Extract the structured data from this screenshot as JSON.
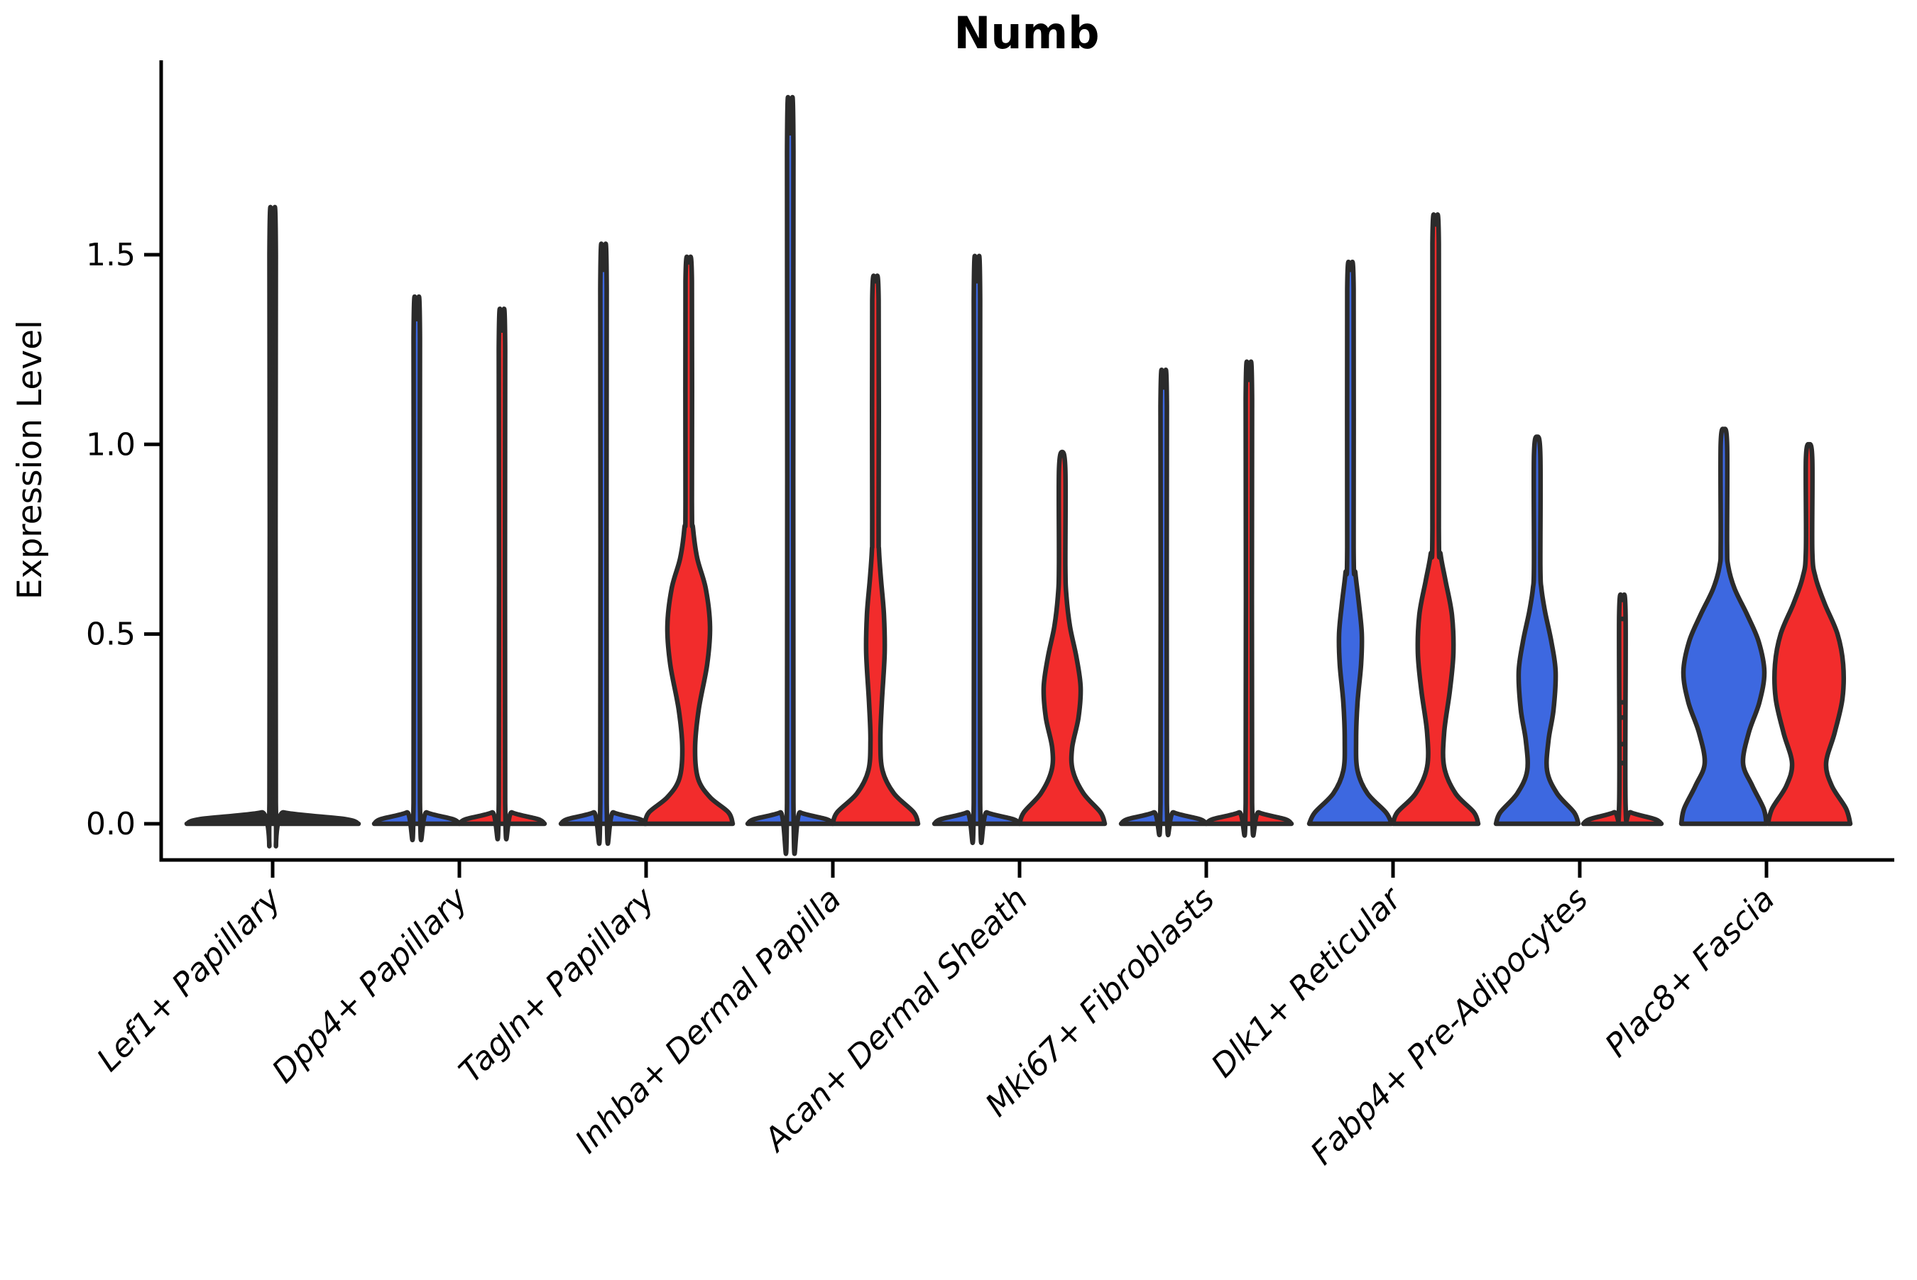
{
  "chart_data": {
    "type": "violin",
    "title": "Numb",
    "ylabel": "Expression Level",
    "xlabel": "",
    "ylim": [
      -0.09,
      2.02
    ],
    "grid": false,
    "legend": "none",
    "yticks": {
      "values": [
        0.0,
        0.5,
        1.0,
        1.5
      ],
      "labels": [
        "0.0",
        "0.5",
        "1.0",
        "1.5"
      ]
    },
    "categories": [
      "Lef1+ Papillary",
      "Dpp4+ Papillary",
      "Tagln+ Papillary",
      "Inhba+ Dermal Papilla",
      "Acan+ Dermal Sheath",
      "Mki67+ Fibroblasts",
      "Dlk1+ Reticular",
      "Fabp4+ Pre-Adipocytes",
      "Plac8+ Fascia"
    ],
    "colors": {
      "split_a": "#3d68e0",
      "split_b": "#f22c2c",
      "outline": "#2b2b2b",
      "axis": "#000000"
    },
    "description": "Split violin plot of Numb expression per fibroblast cluster; most mass at 0 with thin density spikes to the listed maxima; blue = first split level (left violin), red = second split level (right violin).",
    "groups": [
      {
        "category": "Lef1+ Papillary",
        "violins": [
          {
            "side": "center",
            "color": "dark",
            "max": 1.55,
            "median": 0.0,
            "profile": [
              [
                0,
                121
              ],
              [
                0.012,
                103
              ],
              [
                0.03,
                16
              ],
              [
                0.055,
                4.5
              ],
              [
                1.5,
                4.5
              ],
              [
                1.55,
                0
              ]
            ],
            "dots": []
          }
        ]
      },
      {
        "category": "Dpp4+ Papillary",
        "violins": [
          {
            "side": "left",
            "color": "blue",
            "max": 1.33,
            "median": 0.0,
            "profile": [
              [
                0,
                60
              ],
              [
                0.012,
                51
              ],
              [
                0.03,
                14
              ],
              [
                0.055,
                4.5
              ],
              [
                1.28,
                4.5
              ],
              [
                1.33,
                0
              ]
            ],
            "dots": []
          },
          {
            "side": "right",
            "color": "red",
            "max": 1.3,
            "median": 0.0,
            "profile": [
              [
                0,
                60
              ],
              [
                0.012,
                51
              ],
              [
                0.03,
                14
              ],
              [
                0.055,
                4.5
              ],
              [
                1.25,
                4.5
              ],
              [
                1.3,
                0
              ]
            ],
            "dots": []
          }
        ]
      },
      {
        "category": "Tagln+ Papillary",
        "violins": [
          {
            "side": "left",
            "color": "blue",
            "max": 1.46,
            "median": 0.0,
            "profile": [
              [
                0,
                60
              ],
              [
                0.012,
                51
              ],
              [
                0.03,
                14
              ],
              [
                0.055,
                4.5
              ],
              [
                1.41,
                4.5
              ],
              [
                1.46,
                0
              ]
            ],
            "dots": []
          },
          {
            "side": "right",
            "color": "red",
            "max": 1.48,
            "median": 0.0,
            "profile": [
              [
                0,
                62
              ],
              [
                0.03,
                56
              ],
              [
                0.07,
                30
              ],
              [
                0.12,
                13
              ],
              [
                0.2,
                9
              ],
              [
                0.3,
                14
              ],
              [
                0.42,
                26
              ],
              [
                0.52,
                30
              ],
              [
                0.62,
                24
              ],
              [
                0.7,
                12
              ],
              [
                0.78,
                6
              ],
              [
                0.85,
                4.5
              ],
              [
                1.43,
                4.5
              ],
              [
                1.48,
                0
              ]
            ],
            "dots": []
          }
        ]
      },
      {
        "category": "Inhba+ Dermal Papilla",
        "violins": [
          {
            "side": "left",
            "color": "blue",
            "max": 1.82,
            "median": 0.0,
            "profile": [
              [
                0,
                60
              ],
              [
                0.012,
                51
              ],
              [
                0.03,
                14
              ],
              [
                0.055,
                4.5
              ],
              [
                1.77,
                4.5
              ],
              [
                1.82,
                0
              ]
            ],
            "dots": []
          },
          {
            "side": "right",
            "color": "red",
            "max": 1.43,
            "median": 0.0,
            "profile": [
              [
                0,
                60
              ],
              [
                0.03,
                54
              ],
              [
                0.08,
                26
              ],
              [
                0.14,
                10
              ],
              [
                0.22,
                7
              ],
              [
                0.32,
                9
              ],
              [
                0.45,
                13
              ],
              [
                0.55,
                12
              ],
              [
                0.64,
                8
              ],
              [
                0.72,
                5
              ],
              [
                0.8,
                4.5
              ],
              [
                1.38,
                4.5
              ],
              [
                1.43,
                0
              ]
            ],
            "dots": []
          }
        ]
      },
      {
        "category": "Acan+ Dermal Sheath",
        "violins": [
          {
            "side": "left",
            "color": "blue",
            "max": 1.43,
            "median": 0.0,
            "profile": [
              [
                0,
                60
              ],
              [
                0.012,
                51
              ],
              [
                0.03,
                14
              ],
              [
                0.055,
                4.5
              ],
              [
                1.38,
                4.5
              ],
              [
                1.43,
                0
              ]
            ],
            "dots": []
          },
          {
            "side": "right",
            "color": "red",
            "max": 0.98,
            "median": 0.0,
            "profile": [
              [
                0,
                60
              ],
              [
                0.03,
                54
              ],
              [
                0.08,
                30
              ],
              [
                0.14,
                15
              ],
              [
                0.2,
                14
              ],
              [
                0.28,
                23
              ],
              [
                0.36,
                26
              ],
              [
                0.44,
                20
              ],
              [
                0.52,
                11
              ],
              [
                0.6,
                6
              ],
              [
                0.68,
                4.5
              ],
              [
                0.93,
                4.5
              ],
              [
                0.98,
                0
              ]
            ],
            "dots": []
          }
        ]
      },
      {
        "category": "Mki67+ Fibroblasts",
        "violins": [
          {
            "side": "left",
            "color": "blue",
            "max": 1.15,
            "median": 0.0,
            "profile": [
              [
                0,
                60
              ],
              [
                0.012,
                51
              ],
              [
                0.03,
                14
              ],
              [
                0.055,
                4.5
              ],
              [
                1.1,
                4.5
              ],
              [
                1.15,
                0
              ]
            ],
            "dots": []
          },
          {
            "side": "right",
            "color": "red",
            "max": 1.17,
            "median": 0.0,
            "profile": [
              [
                0,
                60
              ],
              [
                0.012,
                51
              ],
              [
                0.03,
                14
              ],
              [
                0.055,
                4.5
              ],
              [
                1.12,
                4.5
              ],
              [
                1.17,
                0
              ]
            ],
            "dots": []
          }
        ]
      },
      {
        "category": "Dlk1+ Reticular",
        "violins": [
          {
            "side": "left",
            "color": "blue",
            "max": 1.46,
            "median": 0.0,
            "profile": [
              [
                0,
                58
              ],
              [
                0.03,
                50
              ],
              [
                0.08,
                24
              ],
              [
                0.14,
                10
              ],
              [
                0.22,
                8
              ],
              [
                0.32,
                10
              ],
              [
                0.42,
                15
              ],
              [
                0.5,
                16
              ],
              [
                0.58,
                12
              ],
              [
                0.66,
                7
              ],
              [
                0.73,
                4.5
              ],
              [
                1.41,
                4.5
              ],
              [
                1.46,
                0
              ]
            ],
            "dots": []
          },
          {
            "side": "right",
            "color": "red",
            "max": 1.58,
            "median": 0.0,
            "profile": [
              [
                0,
                60
              ],
              [
                0.03,
                54
              ],
              [
                0.08,
                28
              ],
              [
                0.15,
                12
              ],
              [
                0.24,
                12
              ],
              [
                0.35,
                20
              ],
              [
                0.45,
                25
              ],
              [
                0.55,
                23
              ],
              [
                0.64,
                14
              ],
              [
                0.71,
                7
              ],
              [
                0.78,
                4.5
              ],
              [
                1.53,
                4.5
              ],
              [
                1.58,
                0
              ]
            ],
            "dots": []
          }
        ]
      },
      {
        "category": "Fabp4+ Pre-Adipocytes",
        "violins": [
          {
            "side": "left",
            "color": "blue",
            "max": 1.02,
            "median": 0.0,
            "profile": [
              [
                0,
                58
              ],
              [
                0.03,
                52
              ],
              [
                0.08,
                28
              ],
              [
                0.14,
                14
              ],
              [
                0.22,
                16
              ],
              [
                0.3,
                23
              ],
              [
                0.4,
                26
              ],
              [
                0.48,
                20
              ],
              [
                0.56,
                11
              ],
              [
                0.62,
                6
              ],
              [
                0.68,
                4.5
              ],
              [
                0.97,
                4.5
              ],
              [
                1.02,
                0
              ]
            ],
            "dots": []
          },
          {
            "side": "right",
            "color": "red",
            "max": 0.59,
            "median": 0.0,
            "profile": [
              [
                0,
                55
              ],
              [
                0.012,
                46
              ],
              [
                0.03,
                12
              ],
              [
                0.05,
                4.5
              ],
              [
                0.55,
                4.5
              ],
              [
                0.59,
                0
              ]
            ],
            "dots": [
              0.16,
              0.21,
              0.28,
              0.32,
              0.54
            ]
          }
        ]
      },
      {
        "category": "Plac8+ Fascia",
        "violins": [
          {
            "side": "left",
            "color": "blue",
            "max": 1.04,
            "median": 0.0,
            "profile": [
              [
                0,
                60
              ],
              [
                0.04,
                56
              ],
              [
                0.1,
                40
              ],
              [
                0.16,
                27
              ],
              [
                0.24,
                35
              ],
              [
                0.32,
                50
              ],
              [
                0.4,
                57
              ],
              [
                0.48,
                49
              ],
              [
                0.55,
                33
              ],
              [
                0.62,
                15
              ],
              [
                0.68,
                6
              ],
              [
                0.74,
                4.5
              ],
              [
                1.0,
                4.5
              ],
              [
                1.04,
                0
              ]
            ],
            "dots": []
          },
          {
            "side": "right",
            "color": "red",
            "max": 1.0,
            "median": 0.0,
            "profile": [
              [
                0,
                58
              ],
              [
                0.04,
                52
              ],
              [
                0.1,
                32
              ],
              [
                0.16,
                24
              ],
              [
                0.24,
                36
              ],
              [
                0.33,
                47
              ],
              [
                0.42,
                48
              ],
              [
                0.5,
                40
              ],
              [
                0.58,
                22
              ],
              [
                0.65,
                9
              ],
              [
                0.72,
                4.5
              ],
              [
                0.96,
                4.5
              ],
              [
                1.0,
                0
              ]
            ],
            "dots": []
          }
        ]
      }
    ]
  }
}
